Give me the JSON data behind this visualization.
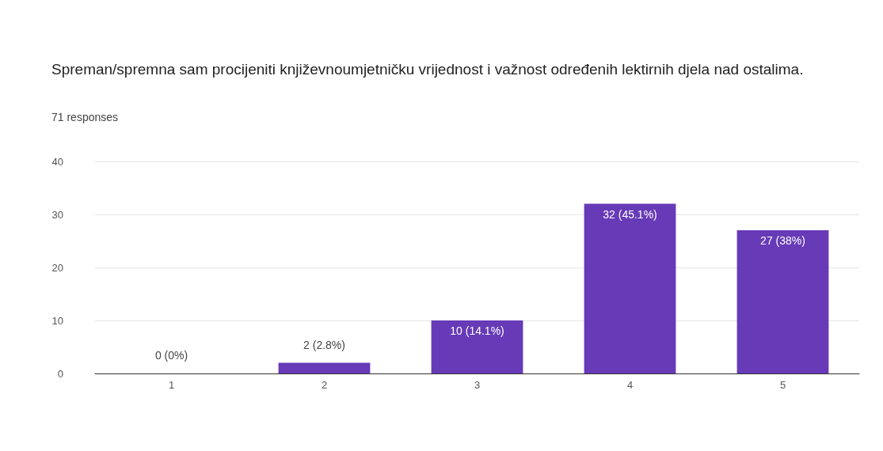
{
  "chart_data": {
    "type": "bar",
    "title": "Spreman/spremna sam procijeniti književnoumjetničku vrijednost i važnost određenih lektirnih djela nad ostalima.",
    "subtitle": "71 responses",
    "categories": [
      "1",
      "2",
      "3",
      "4",
      "5"
    ],
    "values": [
      0,
      2,
      10,
      32,
      27
    ],
    "value_labels": [
      "0 (0%)",
      "2 (2.8%)",
      "10 (14.1%)",
      "32 (45.1%)",
      "27 (38%)"
    ],
    "color": "#673ab7",
    "ylim": [
      0,
      40
    ],
    "yticks": [
      0,
      10,
      20,
      30,
      40
    ],
    "grid": "y"
  }
}
